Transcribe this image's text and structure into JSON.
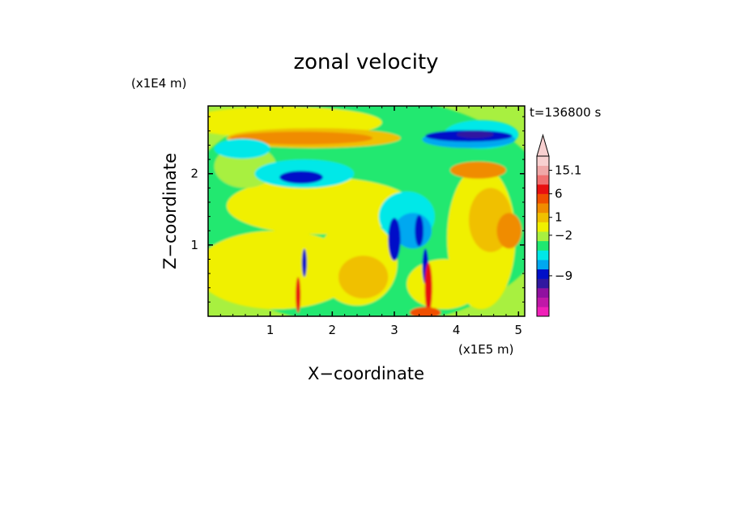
{
  "chart_data": {
    "type": "heatmap",
    "title": "zonal velocity",
    "xlabel": "X−coordinate",
    "ylabel": "Z−coordinate",
    "x_unit": "(x1E5 m)",
    "y_unit": "(x1E4 m)",
    "time_label": "t=136800 s",
    "xlim": [
      0,
      5.1
    ],
    "ylim": [
      0,
      2.95
    ],
    "x_ticks": [
      {
        "value": 1,
        "label": "1"
      },
      {
        "value": 2,
        "label": "2"
      },
      {
        "value": 3,
        "label": "3"
      },
      {
        "value": 4,
        "label": "4"
      },
      {
        "value": 5,
        "label": "5"
      }
    ],
    "y_ticks": [
      {
        "value": 1,
        "label": "1"
      },
      {
        "value": 2,
        "label": "2"
      }
    ],
    "colorbar": {
      "levels_bottom_to_top": [
        {
          "color": "#f020b8"
        },
        {
          "color": "#c018a8"
        },
        {
          "color": "#9010a0"
        },
        {
          "color": "#3018a0"
        },
        {
          "color": "#0010c8"
        },
        {
          "color": "#00a8f0"
        },
        {
          "color": "#00e8e8"
        },
        {
          "color": "#20e870"
        },
        {
          "color": "#a8f040"
        },
        {
          "color": "#f0f000"
        },
        {
          "color": "#f0c000"
        },
        {
          "color": "#f08c00"
        },
        {
          "color": "#f05000"
        },
        {
          "color": "#e81010"
        },
        {
          "color": "#f07070"
        },
        {
          "color": "#f0a8a8"
        },
        {
          "color": "#f8d0d0"
        }
      ],
      "tick_labels": [
        {
          "text": "15.1",
          "level": 15.5
        },
        {
          "text": "6",
          "level": 13
        },
        {
          "text": "1",
          "level": 10.5
        },
        {
          "text": "−2",
          "level": 8.6
        },
        {
          "text": "−9",
          "level": 4.3
        }
      ],
      "extend": "max"
    },
    "regions": [
      {
        "color": "#20e870",
        "cx": 2.55,
        "cy": 1.47,
        "rx": 3.0,
        "ry": 1.6
      },
      {
        "color": "#f0f000",
        "cx": 1.1,
        "cy": 0.65,
        "rx": 1.3,
        "ry": 0.55
      },
      {
        "color": "#f0f000",
        "cx": 2.4,
        "cy": 0.75,
        "rx": 0.65,
        "ry": 0.6
      },
      {
        "color": "#f0f000",
        "cx": 1.8,
        "cy": 1.55,
        "rx": 1.5,
        "ry": 0.4
      },
      {
        "color": "#f0f000",
        "cx": 4.4,
        "cy": 1.1,
        "rx": 0.55,
        "ry": 1.0
      },
      {
        "color": "#f0f000",
        "cx": 1.2,
        "cy": 2.72,
        "rx": 1.6,
        "ry": 0.22
      },
      {
        "color": "#f0f000",
        "cx": 3.8,
        "cy": 0.45,
        "rx": 0.6,
        "ry": 0.35
      },
      {
        "color": "#a8f040",
        "cx": 0.6,
        "cy": 2.1,
        "rx": 0.5,
        "ry": 0.3
      },
      {
        "color": "#f0c000",
        "cx": 2.5,
        "cy": 0.55,
        "rx": 0.4,
        "ry": 0.3
      },
      {
        "color": "#f0c000",
        "cx": 4.55,
        "cy": 1.35,
        "rx": 0.35,
        "ry": 0.45
      },
      {
        "color": "#f0c000",
        "cx": 1.7,
        "cy": 2.5,
        "rx": 1.4,
        "ry": 0.14
      },
      {
        "color": "#f08c00",
        "cx": 1.5,
        "cy": 2.5,
        "rx": 1.15,
        "ry": 0.09
      },
      {
        "color": "#f08c00",
        "cx": 4.35,
        "cy": 2.05,
        "rx": 0.45,
        "ry": 0.12
      },
      {
        "color": "#f08c00",
        "cx": 4.85,
        "cy": 1.2,
        "rx": 0.2,
        "ry": 0.25
      },
      {
        "color": "#00e8e8",
        "cx": 0.55,
        "cy": 2.35,
        "rx": 0.45,
        "ry": 0.14
      },
      {
        "color": "#00e8e8",
        "cx": 1.55,
        "cy": 2.0,
        "rx": 0.8,
        "ry": 0.2
      },
      {
        "color": "#00e8e8",
        "cx": 3.2,
        "cy": 1.4,
        "rx": 0.45,
        "ry": 0.35
      },
      {
        "color": "#00e8e8",
        "cx": 4.4,
        "cy": 2.55,
        "rx": 0.6,
        "ry": 0.2
      },
      {
        "color": "#00a8f0",
        "cx": 3.3,
        "cy": 1.2,
        "rx": 0.3,
        "ry": 0.25
      },
      {
        "color": "#00a8f0",
        "cx": 4.2,
        "cy": 2.48,
        "rx": 0.75,
        "ry": 0.12
      },
      {
        "color": "#0010c8",
        "cx": 1.5,
        "cy": 1.95,
        "rx": 0.35,
        "ry": 0.09
      },
      {
        "color": "#0010c8",
        "cx": 4.2,
        "cy": 2.53,
        "rx": 0.7,
        "ry": 0.08
      },
      {
        "color": "#0010c8",
        "cx": 3.0,
        "cy": 1.08,
        "rx": 0.1,
        "ry": 0.3
      },
      {
        "color": "#0010c8",
        "cx": 3.4,
        "cy": 1.2,
        "rx": 0.07,
        "ry": 0.22
      },
      {
        "color": "#0010c8",
        "cx": 1.55,
        "cy": 0.75,
        "rx": 0.04,
        "ry": 0.2
      },
      {
        "color": "#0010c8",
        "cx": 3.5,
        "cy": 0.7,
        "rx": 0.05,
        "ry": 0.25
      },
      {
        "color": "#3018a0",
        "cx": 4.3,
        "cy": 2.55,
        "rx": 0.3,
        "ry": 0.05
      },
      {
        "color": "#e81010",
        "cx": 3.55,
        "cy": 0.4,
        "rx": 0.06,
        "ry": 0.35
      },
      {
        "color": "#e81010",
        "cx": 1.45,
        "cy": 0.3,
        "rx": 0.04,
        "ry": 0.25
      },
      {
        "color": "#f05000",
        "cx": 3.5,
        "cy": 0.05,
        "rx": 0.25,
        "ry": 0.08
      }
    ]
  }
}
